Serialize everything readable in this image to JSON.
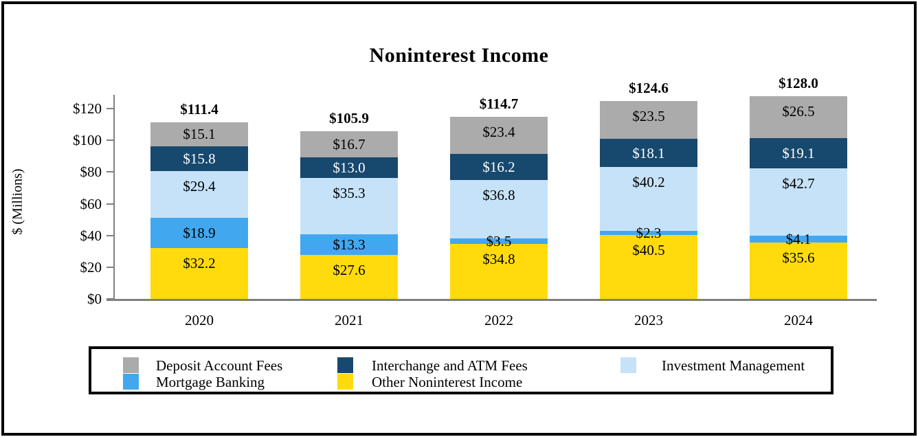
{
  "title": "Noninterest Income",
  "y_axis": {
    "label": "$ (Millions)",
    "ticks": [
      {
        "label": "$0",
        "value": 0
      },
      {
        "label": "$20",
        "value": 20
      },
      {
        "label": "$40",
        "value": 40
      },
      {
        "label": "$60",
        "value": 60
      },
      {
        "label": "$80",
        "value": 80
      },
      {
        "label": "$100",
        "value": 100
      },
      {
        "label": "$120",
        "value": 120
      }
    ]
  },
  "chart_data": {
    "type": "bar",
    "stacked": true,
    "title": "Noninterest Income",
    "xlabel": "",
    "ylabel": "$ (Millions)",
    "ylim": [
      0,
      120
    ],
    "grid": false,
    "legend_position": "bottom",
    "categories": [
      "2020",
      "2021",
      "2022",
      "2023",
      "2024"
    ],
    "series": [
      {
        "name": "Other Noninterest Income",
        "color": "#FFDB0D",
        "label_color": "#000000",
        "values": [
          32.2,
          27.6,
          34.8,
          40.5,
          35.6
        ]
      },
      {
        "name": "Mortgage Banking",
        "color": "#41A8F0",
        "label_color": "#000000",
        "values": [
          18.9,
          13.3,
          3.5,
          2.3,
          4.1
        ]
      },
      {
        "name": "Investment Management",
        "color": "#C6E2F8",
        "label_color": "#000000",
        "values": [
          29.4,
          35.3,
          36.8,
          40.2,
          42.7
        ]
      },
      {
        "name": "Interchange and ATM Fees",
        "color": "#17486E",
        "label_color": "#FFFFFF",
        "values": [
          15.8,
          13.0,
          16.2,
          18.1,
          19.1
        ]
      },
      {
        "name": "Deposit Account Fees",
        "color": "#ABABAB",
        "label_color": "#000000",
        "values": [
          15.1,
          16.7,
          23.4,
          23.5,
          26.5
        ]
      }
    ],
    "totals": [
      111.4,
      105.9,
      114.7,
      124.6,
      128.0
    ],
    "total_labels": [
      "$111.4",
      "$105.9",
      "$114.7",
      "$124.6",
      "$128.0"
    ]
  },
  "legend": {
    "columns": [
      [
        {
          "label": "Deposit Account Fees",
          "color": "#ABABAB"
        },
        {
          "label": "Mortgage Banking",
          "color": "#41A8F0"
        }
      ],
      [
        {
          "label": "Interchange and ATM Fees",
          "color": "#17486E"
        },
        {
          "label": "Other Noninterest Income",
          "color": "#FFDB0D"
        }
      ],
      [
        {
          "label": "Investment Management",
          "color": "#C6E2F8"
        }
      ]
    ]
  },
  "colors": {
    "axis": "#7F7F7F",
    "border": "#000000",
    "background": "#FFFFFF"
  }
}
